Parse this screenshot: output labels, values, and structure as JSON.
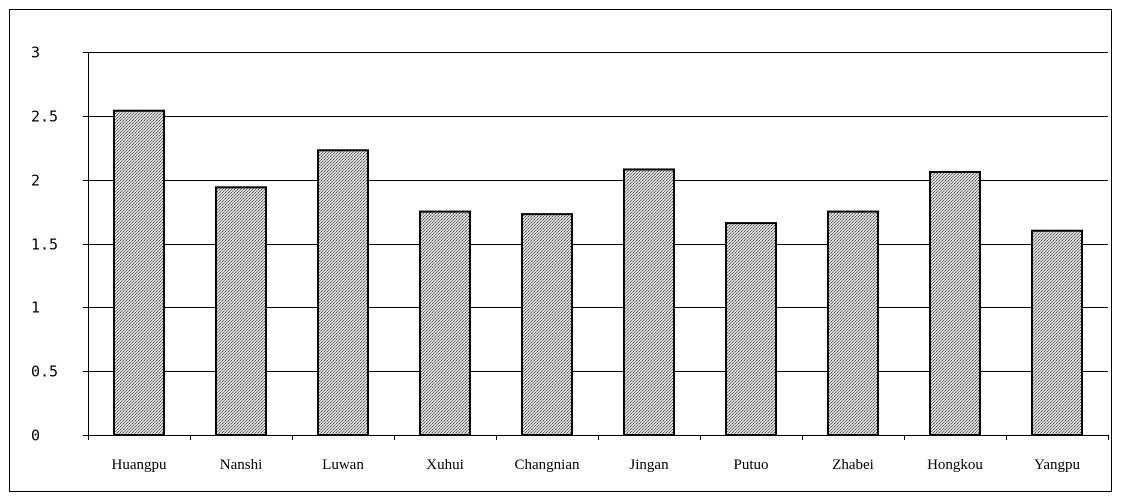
{
  "chart_data": {
    "type": "bar",
    "title": "",
    "xlabel": "",
    "ylabel": "",
    "categories": [
      "Huangpu",
      "Nanshi",
      "Luwan",
      "Xuhui",
      "Changnian",
      "Jingan",
      "Putuo",
      "Zhabei",
      "Hongkou",
      "Yangpu"
    ],
    "values": [
      2.54,
      1.94,
      2.23,
      1.75,
      1.73,
      2.08,
      1.66,
      1.75,
      2.06,
      1.6
    ],
    "ylim": [
      0,
      3
    ],
    "yticks": [
      0,
      0.5,
      1,
      1.5,
      2,
      2.5,
      3
    ],
    "ytick_labels": [
      "0",
      "0.5",
      "1",
      "1.5",
      "2",
      "2.5",
      "3"
    ],
    "grid": true,
    "legend": false,
    "colors": {
      "bar_fill": "#c8c8c8",
      "bar_stroke": "#000000",
      "grid": "#000000",
      "frame": "#000000"
    }
  }
}
